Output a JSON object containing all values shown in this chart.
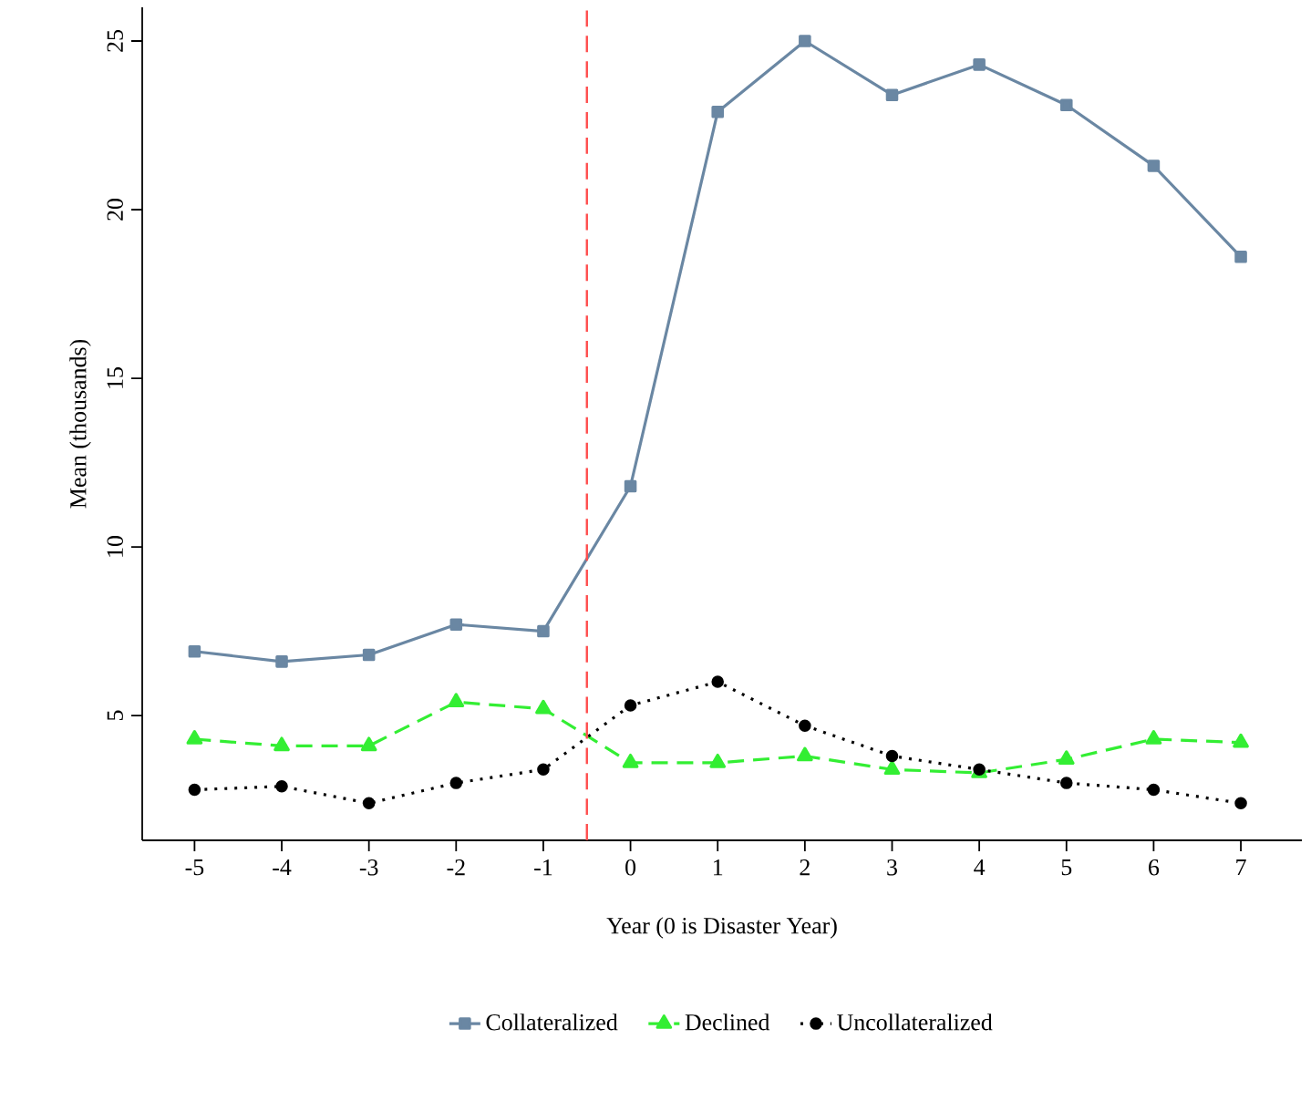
{
  "chart_data": {
    "type": "line",
    "xlabel": "Year (0 is Disaster Year)",
    "ylabel": "Mean (thousands)",
    "x": [
      -5,
      -4,
      -3,
      -2,
      -1,
      0,
      1,
      2,
      3,
      4,
      5,
      6,
      7
    ],
    "series": [
      {
        "name": "Collateralized",
        "color": "#6a87a3",
        "marker": "square",
        "line_style": "solid",
        "values": [
          6.9,
          6.6,
          6.8,
          7.7,
          7.5,
          11.8,
          22.9,
          25.0,
          23.4,
          24.3,
          23.1,
          21.3,
          18.6
        ]
      },
      {
        "name": "Declined",
        "color": "#33ee33",
        "marker": "triangle",
        "line_style": "dashed",
        "values": [
          4.3,
          4.1,
          4.1,
          5.4,
          5.2,
          3.6,
          3.6,
          3.8,
          3.4,
          3.3,
          3.7,
          4.3,
          4.2
        ]
      },
      {
        "name": "Uncollateralized",
        "color": "#000000",
        "marker": "circle",
        "line_style": "dotted",
        "values": [
          2.8,
          2.9,
          2.4,
          3.0,
          3.4,
          5.3,
          6.0,
          4.7,
          3.8,
          3.4,
          3.0,
          2.8,
          2.4
        ]
      }
    ],
    "xlim": [
      -5.6,
      7.7
    ],
    "ylim": [
      1.3,
      26
    ],
    "xticks": [
      -5,
      -4,
      -3,
      -2,
      -1,
      0,
      1,
      2,
      3,
      4,
      5,
      6,
      7
    ],
    "yticks": [
      5,
      10,
      15,
      20,
      25
    ],
    "ref_lines": [
      {
        "axis": "x",
        "value": -0.5,
        "color": "#ff4d4d",
        "line_style": "dashed"
      }
    ],
    "grid": false,
    "legend": "bottom"
  }
}
